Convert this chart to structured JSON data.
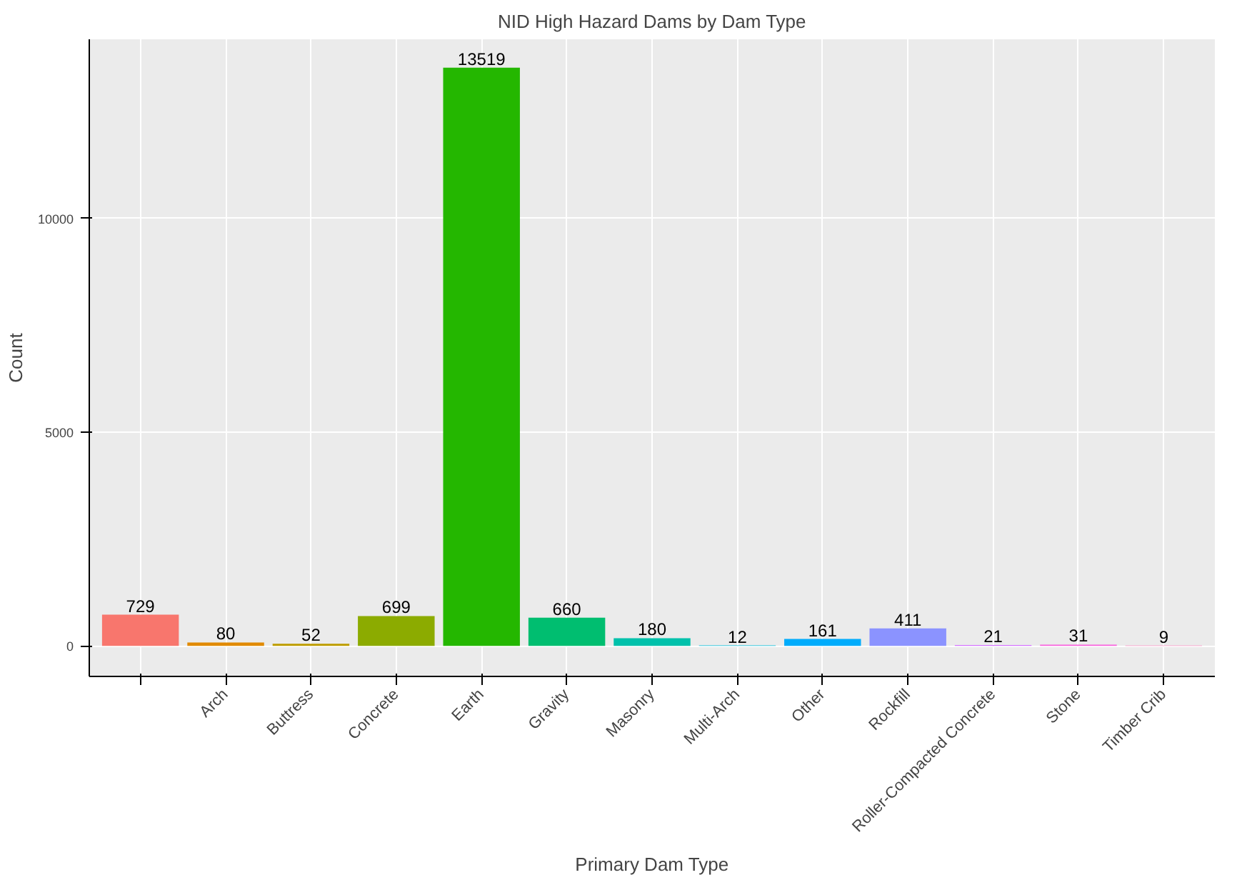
{
  "chart_data": {
    "type": "bar",
    "title": "NID High Hazard Dams by Dam Type",
    "xlabel": "Primary Dam Type",
    "ylabel": "Count",
    "categories": [
      null,
      "Arch",
      "Buttress",
      "Concrete",
      "Earth",
      "Gravity",
      "Masonry",
      "Multi-Arch",
      "Other",
      "Rockfill",
      "Roller-Compacted Concrete",
      "Stone",
      "Timber Crib"
    ],
    "values": [
      729,
      80,
      52,
      699,
      13519,
      660,
      180,
      12,
      161,
      411,
      21,
      31,
      9
    ],
    "colors": [
      "#f8766d",
      "#e18a00",
      "#be9c00",
      "#8cab00",
      "#24b700",
      "#00be70",
      "#00c1ab",
      "#00bbda",
      "#00acfc",
      "#8b93ff",
      "#d575fe",
      "#f962dd",
      "#ff65ac"
    ],
    "ylim": [
      -714,
      14184
    ],
    "yticks": [
      0,
      5000,
      10000
    ],
    "grid": true,
    "data_labels": true
  }
}
